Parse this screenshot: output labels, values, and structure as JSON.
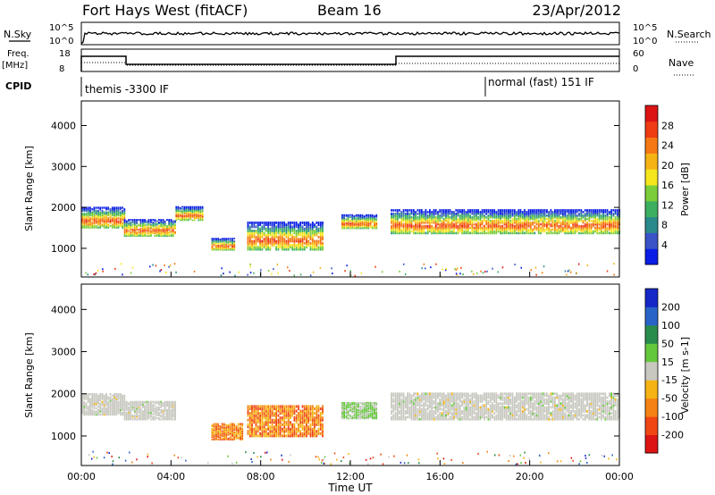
{
  "header": {
    "station": "Fort Hays West (fitACF)",
    "beam": "Beam 16",
    "date": "23/Apr/2012"
  },
  "status_panel": {
    "nsky_label": "N.Sky",
    "nsearch_label": "N.Search",
    "nsky_ticks": [
      "10^5",
      "10^0"
    ],
    "nsearch_ticks": [
      "10^5",
      "10^0"
    ],
    "freq_label": "Freq.",
    "freq_unit": "[MHz]",
    "freq_ticks": [
      "18",
      "8"
    ],
    "nave_label": "Nave",
    "nave_ticks": [
      "60",
      "0"
    ],
    "cpid_label": "CPID",
    "cpid_modes": [
      "themis -3300 IF",
      "normal (fast) 151 IF"
    ]
  },
  "chart_data": [
    {
      "type": "heatmap",
      "title": "",
      "ylabel": "Slant Range [km]",
      "xlabel": "",
      "ylim": [
        300,
        4600
      ],
      "xlim_hours": [
        0,
        24
      ],
      "yticks": [
        "1000",
        "2000",
        "3000",
        "4000"
      ],
      "colorbar": {
        "label": "Power [dB]",
        "ticks": [
          "4",
          "8",
          "12",
          "16",
          "20",
          "24",
          "28"
        ],
        "colors": [
          "#0a1ee6",
          "#3a54c8",
          "#2a8a8c",
          "#3cb060",
          "#7ccd3a",
          "#f5e61e",
          "#f5b414",
          "#f57814",
          "#f03c14",
          "#dc1414"
        ]
      },
      "echo_bands": [
        {
          "start_hour": 0.0,
          "end_hour": 1.9,
          "center_km": 1750,
          "width_km": 520
        },
        {
          "start_hour": 1.9,
          "end_hour": 4.2,
          "center_km": 1500,
          "width_km": 420
        },
        {
          "start_hour": 4.2,
          "end_hour": 5.4,
          "center_km": 1850,
          "width_km": 350
        },
        {
          "start_hour": 5.8,
          "end_hour": 6.8,
          "center_km": 1100,
          "width_km": 300
        },
        {
          "start_hour": 7.4,
          "end_hour": 10.8,
          "center_km": 1300,
          "width_km": 700
        },
        {
          "start_hour": 11.6,
          "end_hour": 13.2,
          "center_km": 1650,
          "width_km": 350
        },
        {
          "start_hour": 13.8,
          "end_hour": 24.0,
          "center_km": 1650,
          "width_km": 600
        }
      ]
    },
    {
      "type": "heatmap",
      "title": "",
      "ylabel": "Slant Range [km]",
      "xlabel": "Time UT",
      "ylim": [
        300,
        4600
      ],
      "xlim_hours": [
        0,
        24
      ],
      "xticks": [
        "00:00",
        "04:00",
        "08:00",
        "12:00",
        "16:00",
        "20:00",
        "00:00"
      ],
      "yticks": [
        "1000",
        "2000",
        "3000",
        "4000"
      ],
      "colorbar": {
        "label": "Velocity [m s-1]",
        "ticks": [
          "200",
          "100",
          "50",
          "15",
          "-15",
          "-50",
          "-100",
          "-200"
        ],
        "colors": [
          "#1428c8",
          "#2864c8",
          "#2a8c4c",
          "#64c83c",
          "#c8c8c0",
          "#f5b414",
          "#f58214",
          "#f04614",
          "#dc1414"
        ]
      },
      "echo_bands": [
        {
          "start_hour": 0.0,
          "end_hour": 1.9,
          "center_km": 1750,
          "width_km": 520,
          "class": "ground"
        },
        {
          "start_hour": 1.9,
          "end_hour": 4.2,
          "center_km": 1600,
          "width_km": 450,
          "class": "ground"
        },
        {
          "start_hour": 5.8,
          "end_hour": 7.2,
          "center_km": 1100,
          "width_km": 400,
          "class": "westward"
        },
        {
          "start_hour": 7.4,
          "end_hour": 10.8,
          "center_km": 1350,
          "width_km": 750,
          "class": "westward"
        },
        {
          "start_hour": 11.6,
          "end_hour": 13.2,
          "center_km": 1600,
          "width_km": 400,
          "class": "eastward"
        },
        {
          "start_hour": 13.8,
          "end_hour": 24.0,
          "center_km": 1700,
          "width_km": 650,
          "class": "ground"
        }
      ]
    }
  ]
}
